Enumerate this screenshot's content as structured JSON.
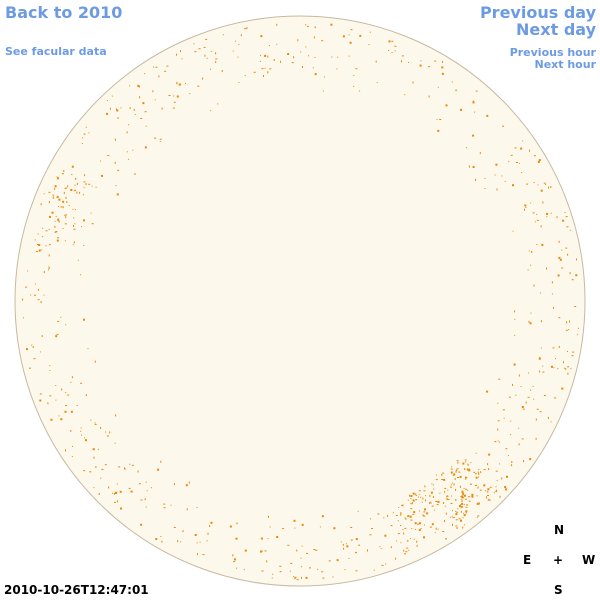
{
  "nav": {
    "back_label": "Back to 2010",
    "facular_label": "See facular data",
    "prev_day_label": "Previous day",
    "next_day_label": "Next day",
    "prev_hour_label": "Previous hour",
    "next_hour_label": "Next hour"
  },
  "compass": {
    "north": "N",
    "east": "E",
    "center": "+",
    "west": "W",
    "south": "S"
  },
  "timestamp": "2010-10-26T12:47:01",
  "colors": {
    "link": "#6c9be3",
    "disk_fill": "#fdf8ec",
    "disk_outline": "#c8b9a0",
    "facula": "#e8890a"
  }
}
